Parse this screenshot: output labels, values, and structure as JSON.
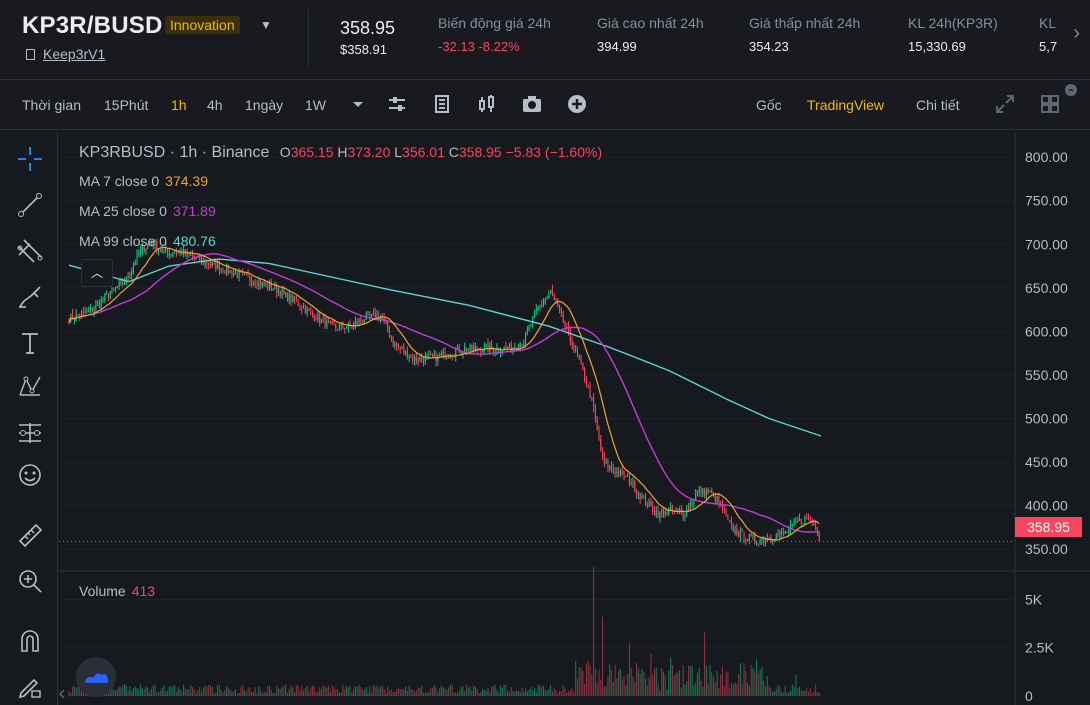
{
  "header": {
    "pair": "KP3R/BUSD",
    "badge": "Innovation",
    "token_link": "Keep3rV1",
    "last_price": "358.95",
    "last_price_usd": "$358.91",
    "stats": [
      {
        "label": "Biến động giá 24h",
        "value": "-32.13 -8.22%",
        "negative": true
      },
      {
        "label": "Giá cao nhất 24h",
        "value": "394.99",
        "negative": false
      },
      {
        "label": "Giá thấp nhất 24h",
        "value": "354.23",
        "negative": false
      },
      {
        "label": "KL 24h(KP3R)",
        "value": "15,330.69",
        "negative": false
      },
      {
        "label": "KL",
        "value": "5,7",
        "negative": false
      }
    ]
  },
  "toolbar": {
    "time_label": "Thời gian",
    "intervals": [
      "15Phút",
      "1h",
      "4h",
      "1ngày",
      "1W"
    ],
    "active_interval": "1h",
    "view_original": "Gốc",
    "view_tradingview": "TradingView",
    "view_depth": "Chi tiết"
  },
  "legend": {
    "symbol": "KP3RBUSD",
    "interval": "1h",
    "exchange": "Binance",
    "open_key": "O",
    "open": "365.15",
    "high_key": "H",
    "high": "373.20",
    "low_key": "L",
    "low": "356.01",
    "close_key": "C",
    "close": "358.95",
    "change": "−5.83 (−1.60%)",
    "ma7_label": "MA 7 close 0",
    "ma7_value": "374.39",
    "ma25_label": "MA 25 close 0",
    "ma25_value": "371.89",
    "ma99_label": "MA 99 close 0",
    "ma99_value": "480.76",
    "volume_label": "Volume",
    "volume_value": "413",
    "current_price_tag": "358.95"
  },
  "colors": {
    "up": "#0ecb81",
    "down": "#f6465d",
    "ma7": "#f0a23b",
    "ma25": "#c23bd6",
    "ma99": "#5fd4cf",
    "accent": "#f0b90b"
  },
  "chart_data": {
    "type": "candlestick",
    "price_axis_ticks": [
      "800.00",
      "750.00",
      "700.00",
      "650.00",
      "600.00",
      "550.00",
      "500.00",
      "450.00",
      "400.00",
      "350.00"
    ],
    "volume_axis_ticks": [
      "5K",
      "2.5K",
      "0"
    ],
    "ylim": [
      325,
      830
    ],
    "volume_ylim": [
      0,
      7000
    ],
    "anchors": [
      [
        0,
        615
      ],
      [
        20,
        622
      ],
      [
        45,
        648
      ],
      [
        58,
        660
      ],
      [
        70,
        690
      ],
      [
        82,
        703
      ],
      [
        95,
        690
      ],
      [
        110,
        692
      ],
      [
        130,
        682
      ],
      [
        155,
        672
      ],
      [
        180,
        660
      ],
      [
        205,
        650
      ],
      [
        225,
        635
      ],
      [
        245,
        618
      ],
      [
        262,
        605
      ],
      [
        280,
        605
      ],
      [
        295,
        615
      ],
      [
        312,
        618
      ],
      [
        325,
        585
      ],
      [
        345,
        568
      ],
      [
        368,
        570
      ],
      [
        395,
        580
      ],
      [
        420,
        580
      ],
      [
        440,
        580
      ],
      [
        455,
        590
      ],
      [
        468,
        625
      ],
      [
        482,
        645
      ],
      [
        498,
        600
      ],
      [
        512,
        560
      ],
      [
        522,
        525
      ],
      [
        534,
        450
      ],
      [
        545,
        440
      ],
      [
        560,
        430
      ],
      [
        575,
        405
      ],
      [
        590,
        390
      ],
      [
        602,
        395
      ],
      [
        615,
        390
      ],
      [
        628,
        415
      ],
      [
        640,
        416
      ],
      [
        652,
        400
      ],
      [
        662,
        375
      ],
      [
        675,
        365
      ],
      [
        690,
        360
      ],
      [
        705,
        365
      ],
      [
        716,
        368
      ],
      [
        728,
        382
      ],
      [
        740,
        385
      ],
      [
        750,
        372
      ],
      [
        752,
        359
      ]
    ],
    "ma99": [
      [
        0,
        676
      ],
      [
        60,
        657
      ],
      [
        100,
        675
      ],
      [
        150,
        683
      ],
      [
        200,
        678
      ],
      [
        260,
        663
      ],
      [
        320,
        648
      ],
      [
        400,
        630
      ],
      [
        480,
        606
      ],
      [
        540,
        582
      ],
      [
        600,
        555
      ],
      [
        660,
        521
      ],
      [
        700,
        500
      ],
      [
        752,
        480
      ]
    ],
    "volume_peaks": [
      {
        "i": 524,
        "v": 6700
      },
      {
        "i": 534,
        "v": 4100
      },
      {
        "i": 560,
        "v": 2700
      },
      {
        "i": 507,
        "v": 1800
      },
      {
        "i": 636,
        "v": 3300
      },
      {
        "i": 582,
        "v": 2200
      },
      {
        "i": 602,
        "v": 2000
      },
      {
        "i": 727,
        "v": 1100
      }
    ]
  }
}
